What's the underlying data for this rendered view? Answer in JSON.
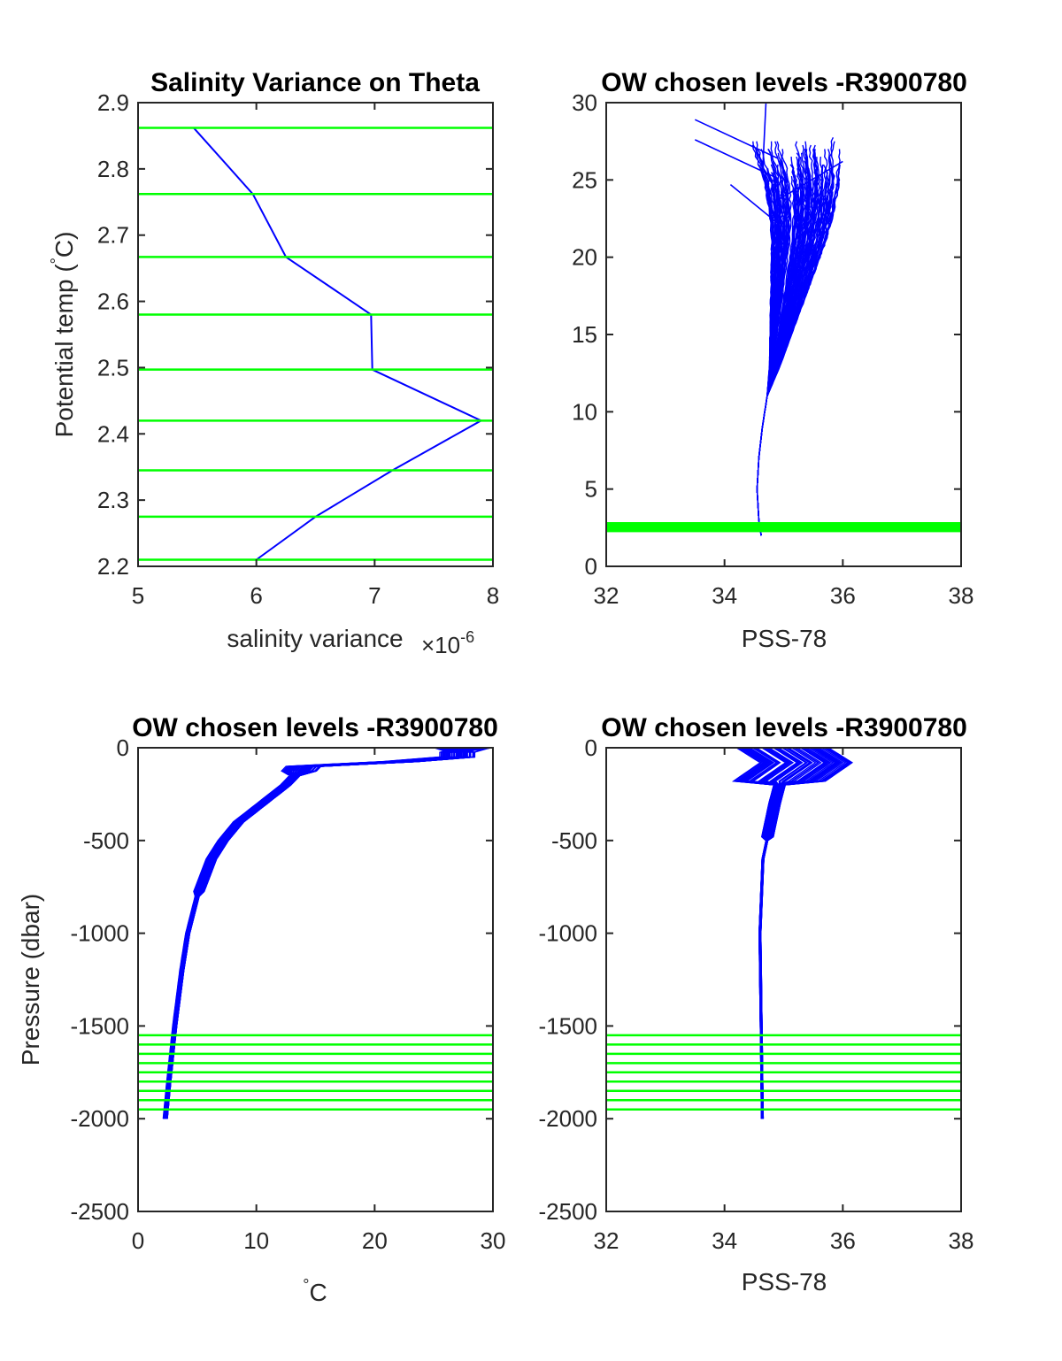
{
  "colors": {
    "profile": "#0000ff",
    "level": "#00ff00",
    "axis": "#262626"
  },
  "chart_data": [
    {
      "type": "line",
      "title": "Salinity Variance on Theta",
      "xlabel": "salinity variance",
      "x_multiplier_label": "×10",
      "x_multiplier_exp": "-6",
      "ylabel_pre": "Potential temp (",
      "ylabel_deg": "°",
      "ylabel_post": "C)",
      "xlim": [
        5,
        8
      ],
      "ylim": [
        2.2,
        2.9
      ],
      "xticks": [
        "5",
        "6",
        "7",
        "8"
      ],
      "yticks": [
        "2.2",
        "2.3",
        "2.4",
        "2.5",
        "2.6",
        "2.7",
        "2.8",
        "2.9"
      ],
      "series": [
        {
          "x": [
            5.47,
            5.97,
            6.25,
            6.97,
            6.98,
            7.9,
            7.15,
            6.5,
            6.0
          ],
          "y": [
            2.862,
            2.762,
            2.667,
            2.58,
            2.497,
            2.42,
            2.345,
            2.275,
            2.21
          ]
        }
      ],
      "levels": [
        2.862,
        2.762,
        2.667,
        2.58,
        2.497,
        2.42,
        2.345,
        2.275,
        2.21
      ]
    },
    {
      "type": "line",
      "title": "OW chosen levels -R3900780",
      "xlabel": "PSS-78",
      "xlim": [
        32,
        38
      ],
      "ylim": [
        0,
        30
      ],
      "xticks": [
        "32",
        "34",
        "36",
        "38"
      ],
      "yticks": [
        "0",
        "5",
        "10",
        "15",
        "20",
        "25",
        "30"
      ],
      "levels_band": [
        2.21,
        2.862
      ]
    },
    {
      "type": "line",
      "title": "OW chosen levels -R3900780",
      "xlabel_deg": "°",
      "xlabel": "C",
      "ylabel": "Pressure (dbar)",
      "xlim": [
        0,
        30
      ],
      "ylim": [
        -2500,
        0
      ],
      "xticks": [
        "0",
        "10",
        "20",
        "30"
      ],
      "yticks": [
        "-2500",
        "-2000",
        "-1500",
        "-1000",
        "-500",
        "0"
      ],
      "levels": [
        -1550,
        -1600,
        -1650,
        -1700,
        -1750,
        -1800,
        -1850,
        -1900,
        -1950
      ]
    },
    {
      "type": "line",
      "title": "OW chosen levels -R3900780",
      "xlabel": "PSS-78",
      "xlim": [
        32,
        38
      ],
      "ylim": [
        -2500,
        0
      ],
      "xticks": [
        "32",
        "34",
        "36",
        "38"
      ],
      "yticks": [
        "-2500",
        "-2000",
        "-1500",
        "-1000",
        "-500",
        "0"
      ],
      "levels": [
        -1550,
        -1600,
        -1650,
        -1700,
        -1750,
        -1800,
        -1850,
        -1900,
        -1950
      ]
    }
  ]
}
